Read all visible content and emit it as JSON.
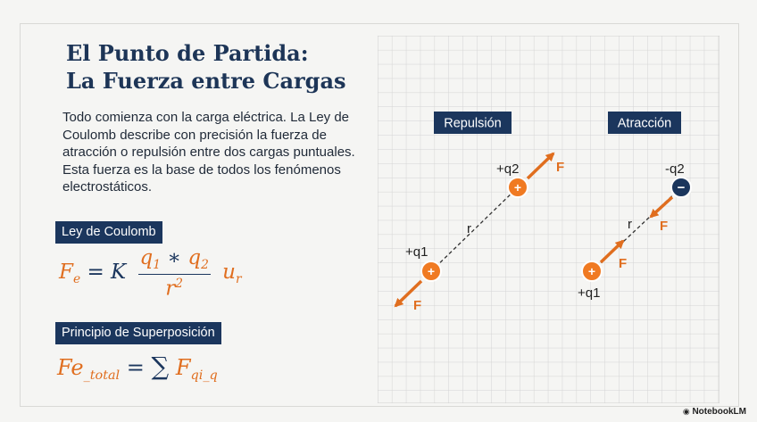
{
  "title": {
    "line1": "El Punto de Partida:",
    "line2": "La Fuerza entre Cargas"
  },
  "intro": "Todo comienza con la carga eléctrica. La Ley de Coulomb describe con precisión la fuerza de atracción o repulsión entre dos cargas puntuales. Esta fuerza es la base de todos los fenómenos electrostáticos.",
  "coulomb": {
    "label": "Ley de Coulomb"
  },
  "superposition": {
    "label": "Principio de Superposición"
  },
  "diagram": {
    "repulsion": {
      "label": "Repulsión",
      "q1": "+q1",
      "q2": "+q2",
      "r": "r",
      "force": "F",
      "plus": "+"
    },
    "attraction": {
      "label": "Atracción",
      "q1": "+q1",
      "q2": "-q2",
      "r": "r",
      "force": "F",
      "plus": "+",
      "minus": "−"
    }
  },
  "watermark": "NotebookLM",
  "colors": {
    "navy": "#1b365d",
    "orange": "#e06e1f",
    "grid": "#d4d4d4",
    "background": "#f5f5f3"
  }
}
